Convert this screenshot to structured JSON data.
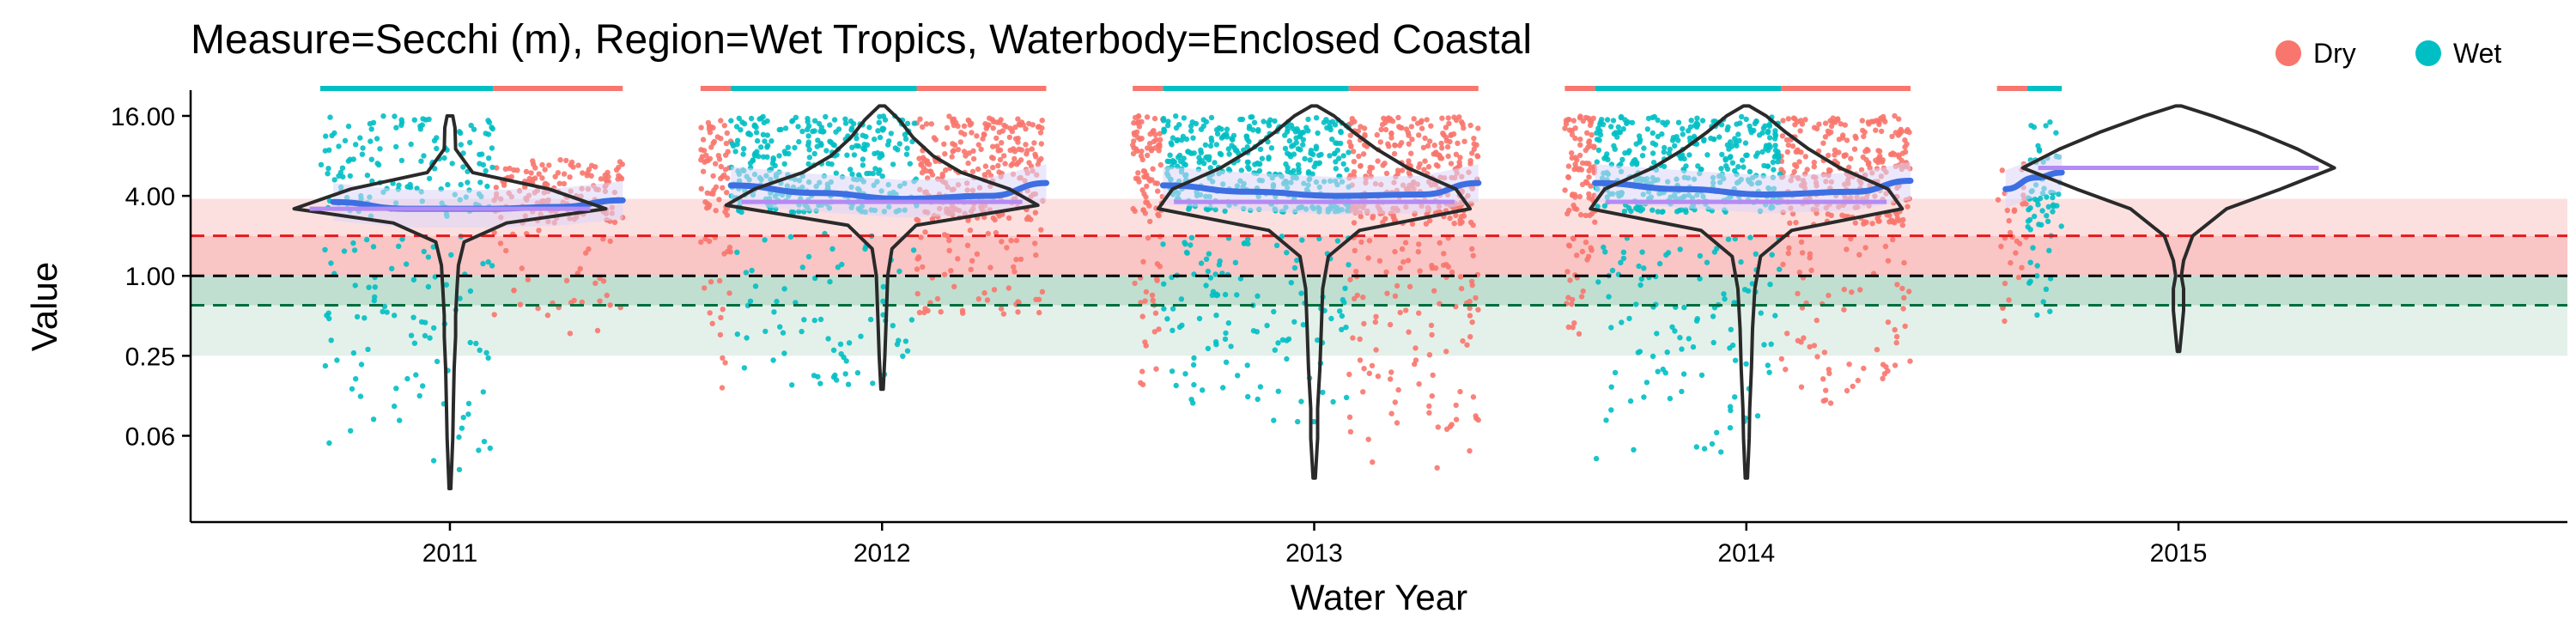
{
  "chart_data": {
    "type": "scatter",
    "title": "Measure=Secchi (m), Region=Wet Tropics, Waterbody=Enclosed Coastal",
    "xlabel": "Water Year",
    "ylabel": "Value",
    "y_scale": "log2",
    "y_ticks": [
      {
        "value": 16,
        "label": "16.00"
      },
      {
        "value": 4,
        "label": "4.00"
      },
      {
        "value": 1,
        "label": "1.00"
      },
      {
        "value": 0.25,
        "label": "0.25"
      },
      {
        "value": 0.0625,
        "label": "0.06"
      }
    ],
    "ylim": [
      0.014,
      25
    ],
    "x_ticks": [
      2011,
      2012,
      2013,
      2014,
      2015
    ],
    "xlim": [
      2010.4,
      2015.9
    ],
    "legend": {
      "position": "top-right",
      "items": [
        {
          "label": "Dry",
          "color": "#F8766D"
        },
        {
          "label": "Wet",
          "color": "#00BFC4"
        }
      ]
    },
    "reference_lines": [
      {
        "value": 2.0,
        "color": "#E31A1C",
        "style": "dashed"
      },
      {
        "value": 1.0,
        "color": "#000000",
        "style": "dashed"
      },
      {
        "value": 0.6,
        "color": "#006D3C",
        "style": "dashed"
      }
    ],
    "bands": [
      {
        "from": 3.8,
        "to": 2.0,
        "color": "#FCE0E0"
      },
      {
        "from": 2.0,
        "to": 1.0,
        "color": "#F9C5C5"
      },
      {
        "from": 1.0,
        "to": 0.6,
        "color": "#C0DFD0"
      },
      {
        "from": 0.6,
        "to": 0.25,
        "color": "#E4F1EA"
      }
    ],
    "season_spans": [
      {
        "season": "Wet",
        "start": 2010.7,
        "end": 2011.1
      },
      {
        "season": "Dry",
        "start": 2011.1,
        "end": 2011.4
      },
      {
        "season": "Dry",
        "start": 2011.58,
        "end": 2011.65
      },
      {
        "season": "Wet",
        "start": 2011.65,
        "end": 2012.08
      },
      {
        "season": "Dry",
        "start": 2012.08,
        "end": 2012.38
      },
      {
        "season": "Dry",
        "start": 2012.58,
        "end": 2012.65
      },
      {
        "season": "Wet",
        "start": 2012.65,
        "end": 2013.08
      },
      {
        "season": "Dry",
        "start": 2013.08,
        "end": 2013.38
      },
      {
        "season": "Dry",
        "start": 2013.58,
        "end": 2013.65
      },
      {
        "season": "Wet",
        "start": 2013.65,
        "end": 2014.08
      },
      {
        "season": "Dry",
        "start": 2014.08,
        "end": 2014.38
      },
      {
        "season": "Dry",
        "start": 2014.58,
        "end": 2014.65
      },
      {
        "season": "Wet",
        "start": 2014.65,
        "end": 2014.73
      }
    ],
    "violins": [
      {
        "year": 2011,
        "median": 3.2,
        "min": 0.025,
        "max": 16,
        "shape": [
          [
            0.025,
            0.003
          ],
          [
            0.06,
            0.01
          ],
          [
            0.1,
            0.012
          ],
          [
            0.2,
            0.015
          ],
          [
            0.35,
            0.02
          ],
          [
            0.5,
            0.02
          ],
          [
            0.8,
            0.025
          ],
          [
            1.2,
            0.03
          ],
          [
            1.8,
            0.05
          ],
          [
            2.5,
            0.2
          ],
          [
            3.2,
            0.55
          ],
          [
            4.5,
            0.35
          ],
          [
            6,
            0.08
          ],
          [
            9,
            0.02
          ],
          [
            13,
            0.018
          ],
          [
            16,
            0.01
          ]
        ]
      },
      {
        "year": 2012,
        "median": 3.6,
        "min": 0.14,
        "max": 19,
        "shape": [
          [
            0.14,
            0.004
          ],
          [
            0.25,
            0.01
          ],
          [
            0.5,
            0.015
          ],
          [
            1.0,
            0.02
          ],
          [
            1.6,
            0.035
          ],
          [
            2.4,
            0.12
          ],
          [
            3.4,
            0.55
          ],
          [
            4.5,
            0.45
          ],
          [
            6,
            0.28
          ],
          [
            8,
            0.18
          ],
          [
            11,
            0.11
          ],
          [
            15,
            0.06
          ],
          [
            19,
            0.01
          ]
        ]
      },
      {
        "year": 2013,
        "median": 3.6,
        "min": 0.03,
        "max": 19,
        "shape": [
          [
            0.03,
            0.004
          ],
          [
            0.06,
            0.012
          ],
          [
            0.1,
            0.012
          ],
          [
            0.2,
            0.02
          ],
          [
            0.4,
            0.025
          ],
          [
            0.8,
            0.03
          ],
          [
            1.4,
            0.05
          ],
          [
            2.2,
            0.16
          ],
          [
            3.2,
            0.55
          ],
          [
            4.5,
            0.5
          ],
          [
            6.5,
            0.33
          ],
          [
            9,
            0.22
          ],
          [
            12,
            0.14
          ],
          [
            16,
            0.07
          ],
          [
            19,
            0.01
          ]
        ]
      },
      {
        "year": 2014,
        "median": 3.6,
        "min": 0.03,
        "max": 19,
        "shape": [
          [
            0.03,
            0.004
          ],
          [
            0.06,
            0.01
          ],
          [
            0.1,
            0.012
          ],
          [
            0.2,
            0.018
          ],
          [
            0.4,
            0.022
          ],
          [
            0.8,
            0.03
          ],
          [
            1.4,
            0.05
          ],
          [
            2.2,
            0.16
          ],
          [
            3.2,
            0.55
          ],
          [
            4.5,
            0.5
          ],
          [
            6.5,
            0.33
          ],
          [
            9,
            0.22
          ],
          [
            12,
            0.14
          ],
          [
            16,
            0.07
          ],
          [
            19,
            0.01
          ]
        ]
      },
      {
        "year": 2015,
        "median": 6.5,
        "min": 0.27,
        "max": 19,
        "shape": [
          [
            0.27,
            0.004
          ],
          [
            0.4,
            0.012
          ],
          [
            0.55,
            0.018
          ],
          [
            0.8,
            0.018
          ],
          [
            1.0,
            0.01
          ],
          [
            1.3,
            0.018
          ],
          [
            2.0,
            0.05
          ],
          [
            3.2,
            0.17
          ],
          [
            4.5,
            0.36
          ],
          [
            6.5,
            0.55
          ],
          [
            9,
            0.42
          ],
          [
            12,
            0.28
          ],
          [
            16,
            0.12
          ],
          [
            19,
            0.01
          ]
        ]
      }
    ],
    "trend": {
      "color": "#3D6FE3",
      "segments": [
        {
          "x": [
            2010.73,
            2010.9,
            2011.1,
            2011.25,
            2011.4
          ],
          "y": [
            3.6,
            3.2,
            3.2,
            3.3,
            3.7
          ]
        },
        {
          "x": [
            2011.65,
            2011.85,
            2012.05,
            2012.25,
            2012.38
          ],
          "y": [
            4.8,
            4.2,
            3.8,
            4.0,
            5.0
          ]
        },
        {
          "x": [
            2012.65,
            2012.85,
            2013.05,
            2013.25,
            2013.38
          ],
          "y": [
            4.8,
            4.3,
            4.0,
            4.1,
            5.0
          ]
        },
        {
          "x": [
            2013.65,
            2013.85,
            2014.05,
            2014.25,
            2014.38
          ],
          "y": [
            5.0,
            4.5,
            4.1,
            4.3,
            5.2
          ]
        },
        {
          "x": [
            2014.6,
            2014.67,
            2014.73
          ],
          "y": [
            4.5,
            5.5,
            6.0
          ]
        }
      ]
    },
    "series": [
      {
        "name": "Dry",
        "color": "#F8766D",
        "clusters": [
          {
            "x_start": 2011.1,
            "x_end": 2011.4,
            "y_low": 2.5,
            "y_high": 7.5,
            "n": 150
          },
          {
            "x_start": 2011.1,
            "x_end": 2011.4,
            "y_low": 0.35,
            "y_high": 2.2,
            "n": 35
          },
          {
            "x_start": 2011.58,
            "x_end": 2011.65,
            "y_low": 2.5,
            "y_high": 16,
            "n": 60
          },
          {
            "x_start": 2011.58,
            "x_end": 2011.65,
            "y_low": 0.14,
            "y_high": 2.0,
            "n": 20
          },
          {
            "x_start": 2012.08,
            "x_end": 2012.38,
            "y_low": 2.6,
            "y_high": 16,
            "n": 260
          },
          {
            "x_start": 2012.08,
            "x_end": 2012.38,
            "y_low": 0.5,
            "y_high": 2.4,
            "n": 60
          },
          {
            "x_start": 2012.58,
            "x_end": 2012.65,
            "y_low": 2.5,
            "y_high": 16,
            "n": 80
          },
          {
            "x_start": 2012.58,
            "x_end": 2012.65,
            "y_low": 0.15,
            "y_high": 2.0,
            "n": 25
          },
          {
            "x_start": 2013.08,
            "x_end": 2013.38,
            "y_low": 2.4,
            "y_high": 16,
            "n": 300
          },
          {
            "x_start": 2013.08,
            "x_end": 2013.38,
            "y_low": 0.035,
            "y_high": 2.0,
            "n": 110
          },
          {
            "x_start": 2013.58,
            "x_end": 2013.65,
            "y_low": 2.5,
            "y_high": 16,
            "n": 80
          },
          {
            "x_start": 2013.58,
            "x_end": 2013.65,
            "y_low": 0.35,
            "y_high": 2.0,
            "n": 25
          },
          {
            "x_start": 2014.08,
            "x_end": 2014.38,
            "y_low": 2.4,
            "y_high": 16,
            "n": 280
          },
          {
            "x_start": 2014.08,
            "x_end": 2014.38,
            "y_low": 0.06,
            "y_high": 2.0,
            "n": 70
          },
          {
            "x_start": 2014.58,
            "x_end": 2014.65,
            "y_low": 0.3,
            "y_high": 7,
            "n": 30
          }
        ]
      },
      {
        "name": "Wet",
        "color": "#00BFC4",
        "clusters": [
          {
            "x_start": 2010.7,
            "x_end": 2011.1,
            "y_low": 2.8,
            "y_high": 16,
            "n": 140
          },
          {
            "x_start": 2010.7,
            "x_end": 2011.1,
            "y_low": 0.025,
            "y_high": 2.0,
            "n": 90
          },
          {
            "x_start": 2011.65,
            "x_end": 2012.08,
            "y_low": 3.0,
            "y_high": 16,
            "n": 330
          },
          {
            "x_start": 2011.65,
            "x_end": 2012.08,
            "y_low": 0.14,
            "y_high": 2.2,
            "n": 70
          },
          {
            "x_start": 2012.65,
            "x_end": 2013.08,
            "y_low": 3.0,
            "y_high": 16,
            "n": 380
          },
          {
            "x_start": 2012.65,
            "x_end": 2013.08,
            "y_low": 0.07,
            "y_high": 2.0,
            "n": 120
          },
          {
            "x_start": 2013.65,
            "x_end": 2014.08,
            "y_low": 3.0,
            "y_high": 16,
            "n": 380
          },
          {
            "x_start": 2013.65,
            "x_end": 2014.08,
            "y_low": 0.03,
            "y_high": 2.0,
            "n": 110
          },
          {
            "x_start": 2014.65,
            "x_end": 2014.73,
            "y_low": 2.0,
            "y_high": 16,
            "n": 55
          },
          {
            "x_start": 2014.65,
            "x_end": 2014.73,
            "y_low": 0.5,
            "y_high": 2.0,
            "n": 12
          }
        ]
      }
    ]
  }
}
